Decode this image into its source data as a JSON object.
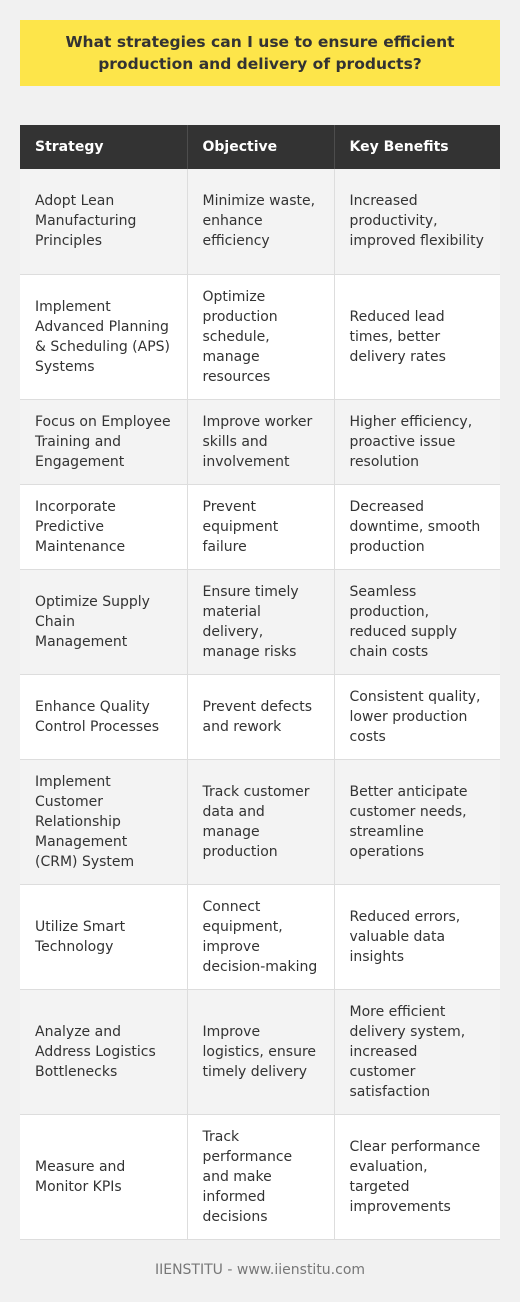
{
  "title": "What strategies can I use to ensure efficient production and delivery of products?",
  "table": {
    "headers": [
      "Strategy",
      "Objective",
      "Key Benefits"
    ],
    "rows": [
      [
        "Adopt Lean Manufacturing Principles",
        "Minimize waste, enhance efficiency",
        "Increased productivity, improved flexibility"
      ],
      [
        "Implement Advanced Planning & Scheduling (APS) Systems",
        "Optimize production schedule, manage resources",
        "Reduced lead times, better delivery rates"
      ],
      [
        "Focus on Employee Training and Engagement",
        "Improve worker skills and involvement",
        "Higher efficiency, proactive issue resolution"
      ],
      [
        "Incorporate Predictive Maintenance",
        "Prevent equipment failure",
        "Decreased downtime, smooth production"
      ],
      [
        "Optimize Supply Chain Management",
        "Ensure timely material delivery, manage risks",
        "Seamless production, reduced supply chain costs"
      ],
      [
        "Enhance Quality Control Processes",
        "Prevent defects and rework",
        "Consistent quality, lower production costs"
      ],
      [
        "Implement Customer Relationship Management (CRM) System",
        "Track customer data and manage production",
        "Better anticipate customer needs, streamline operations"
      ],
      [
        "Utilize Smart Technology",
        "Connect equipment, improve decision-making",
        "Reduced errors, valuable data insights"
      ],
      [
        "Analyze and Address Logistics Bottlenecks",
        "Improve logistics, ensure timely delivery",
        "More efficient delivery system, increased customer satisfaction"
      ],
      [
        "Measure and Monitor KPIs",
        "Track performance and make informed decisions",
        "Clear performance evaluation, targeted improvements"
      ]
    ]
  },
  "footer": "IIENSTITU - www.iienstitu.com",
  "colors": {
    "title_background": "#fde54a",
    "header_background": "#333333",
    "page_background": "#f1f1f1"
  }
}
